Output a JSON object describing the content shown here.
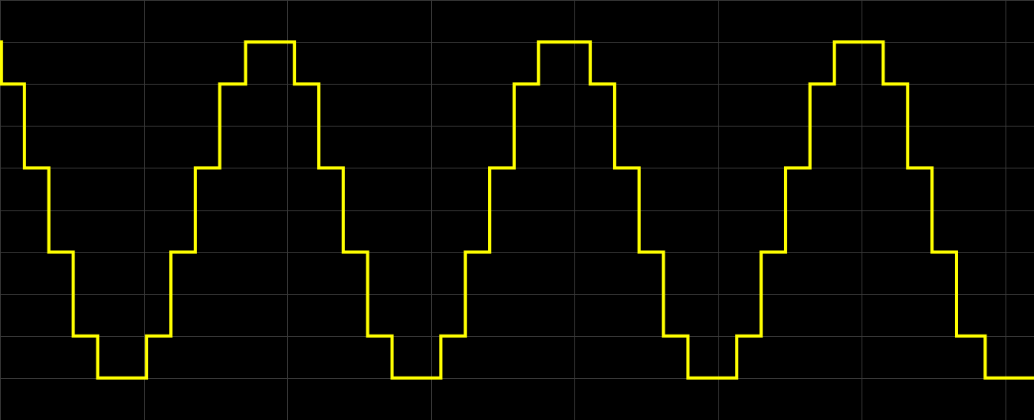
{
  "chart_data": {
    "type": "line",
    "interpolation": "step-after",
    "title": "",
    "xlabel": "",
    "ylabel": "",
    "grid": true,
    "legend": "none",
    "xlim": [
      0,
      7.2
    ],
    "ylim": [
      -1.25,
      1.25
    ],
    "series": [
      {
        "name": "",
        "color": "#ffff00",
        "x": [
          0,
          0.01,
          0.17,
          0.34,
          0.51,
          0.68,
          0.85,
          1.02,
          1.19,
          1.36,
          1.53,
          1.71,
          1.88,
          2.05,
          2.22,
          2.39,
          2.56,
          2.73,
          2.9,
          3.07,
          3.24,
          3.41,
          3.58,
          3.75,
          3.92,
          4.11,
          4.28,
          4.45,
          4.62,
          4.79,
          4.96,
          5.13,
          5.3,
          5.47,
          5.64,
          5.81,
          5.98,
          6.15,
          6.32,
          6.49,
          6.66,
          6.86,
          7.2
        ],
        "y": [
          1.0,
          0.75,
          0.25,
          -0.25,
          -0.75,
          -1.0,
          -1.0,
          -0.75,
          -0.25,
          0.25,
          0.75,
          1.0,
          1.0,
          0.75,
          0.25,
          -0.25,
          -0.75,
          -1.0,
          -1.0,
          -0.75,
          -0.25,
          0.25,
          0.75,
          1.0,
          1.0,
          0.75,
          0.25,
          -0.25,
          -0.75,
          -1.0,
          -1.0,
          -0.75,
          -0.25,
          0.25,
          0.75,
          1.0,
          1.0,
          0.75,
          0.25,
          -0.25,
          -0.75,
          -1.0,
          -1.0
        ]
      }
    ],
    "x_gridlines": [
      0,
      1,
      2,
      3,
      4,
      5,
      6,
      7
    ],
    "y_gridlines": [
      -1.25,
      -1.0,
      -0.75,
      -0.5,
      -0.25,
      0,
      0.25,
      0.5,
      0.75,
      1.0,
      1.25
    ],
    "colors": {
      "background": "#000000",
      "grid": "#3a3a3a",
      "trace": "#ffff00"
    }
  }
}
